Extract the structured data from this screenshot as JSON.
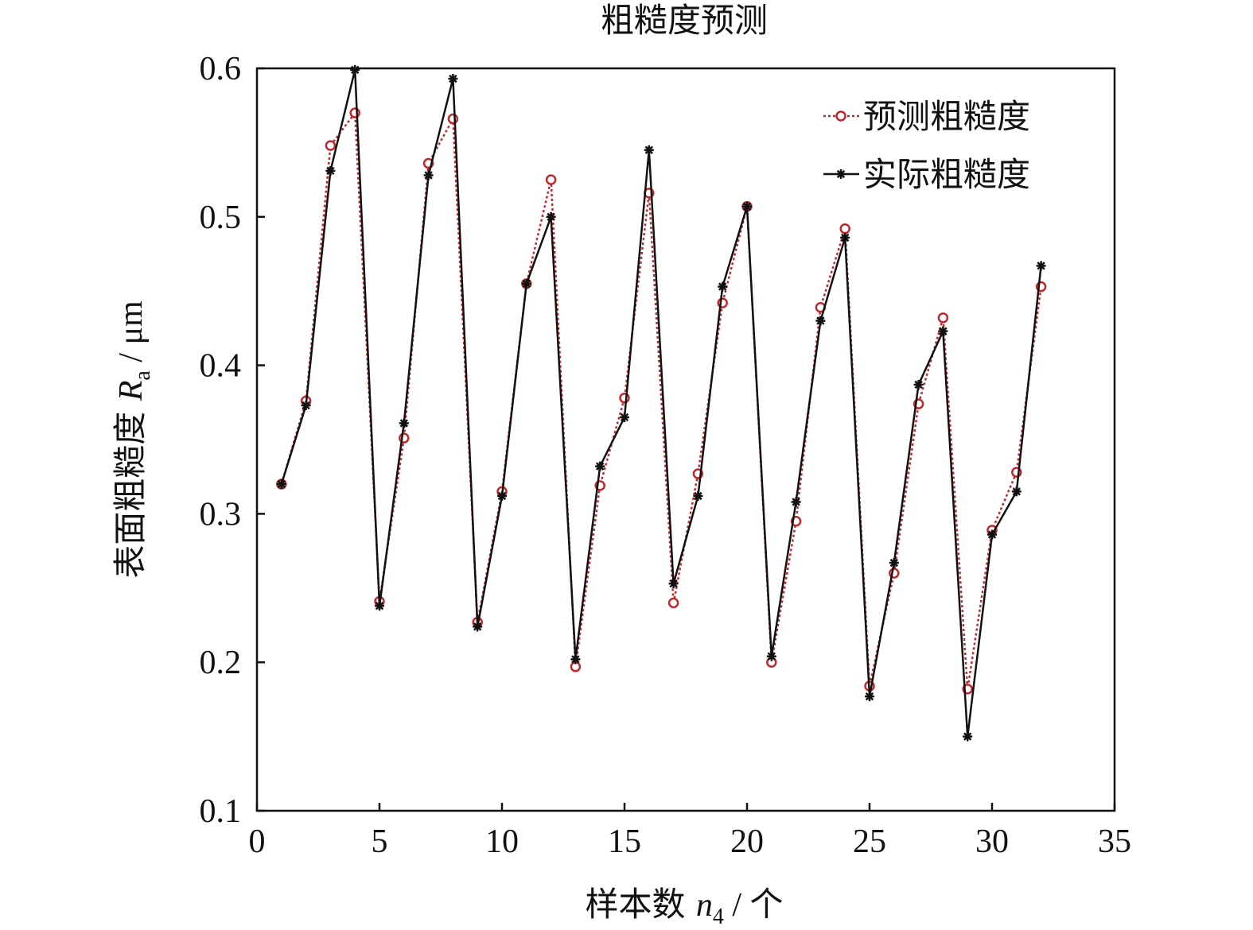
{
  "chart_data": {
    "type": "line",
    "title": "粗糙度预测",
    "xlabel": {
      "prefix": "样本数 ",
      "var": "n",
      "sub": "4",
      "suffix": " / 个"
    },
    "ylabel": {
      "prefix": "表面粗糙度 ",
      "var": "R",
      "sub": "a",
      "suffix": " / μm"
    },
    "xlim": [
      0,
      35
    ],
    "ylim": [
      0.1,
      0.6
    ],
    "xticks": [
      "0",
      "5",
      "10",
      "15",
      "20",
      "25",
      "30",
      "35"
    ],
    "yticks": [
      "0.1",
      "0.2",
      "0.3",
      "0.4",
      "0.5",
      "0.6"
    ],
    "grid": false,
    "legend_position": "top-right",
    "x": [
      1,
      2,
      3,
      4,
      5,
      6,
      7,
      8,
      9,
      10,
      11,
      12,
      13,
      14,
      15,
      16,
      17,
      18,
      19,
      20,
      21,
      22,
      23,
      24,
      25,
      26,
      27,
      28,
      29,
      30,
      31,
      32
    ],
    "series": [
      {
        "name": "预测粗糙度",
        "color": "#c0282d",
        "style": "dotted",
        "marker": "circle",
        "values": [
          0.32,
          0.376,
          0.548,
          0.57,
          0.241,
          0.351,
          0.536,
          0.566,
          0.227,
          0.315,
          0.455,
          0.525,
          0.197,
          0.319,
          0.378,
          0.516,
          0.24,
          0.327,
          0.442,
          0.507,
          0.2,
          0.295,
          0.439,
          0.492,
          0.184,
          0.26,
          0.374,
          0.432,
          0.182,
          0.289,
          0.328,
          0.453
        ]
      },
      {
        "name": "实际粗糙度",
        "color": "#111111",
        "style": "solid",
        "marker": "star",
        "values": [
          0.32,
          0.373,
          0.531,
          0.599,
          0.238,
          0.361,
          0.528,
          0.593,
          0.224,
          0.312,
          0.455,
          0.5,
          0.202,
          0.332,
          0.365,
          0.545,
          0.253,
          0.312,
          0.453,
          0.507,
          0.204,
          0.308,
          0.43,
          0.486,
          0.177,
          0.267,
          0.387,
          0.423,
          0.15,
          0.286,
          0.315,
          0.467
        ]
      }
    ]
  }
}
